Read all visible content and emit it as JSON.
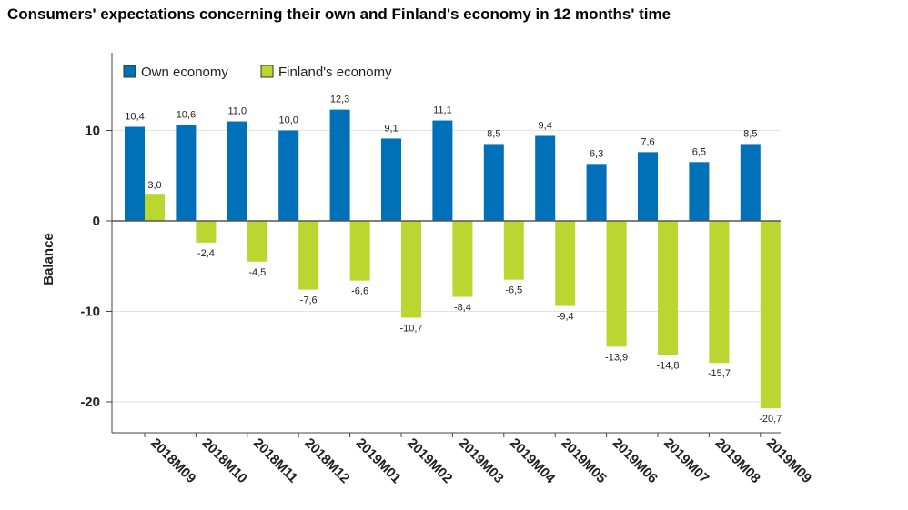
{
  "chart_data": {
    "type": "bar",
    "title": "Consumers' expectations concerning their own and Finland's economy in 12 months' time",
    "ylabel": "Balance",
    "xlabel": "",
    "ylim": [
      -23,
      18
    ],
    "yticks": [
      10,
      0,
      -10,
      -20
    ],
    "categories": [
      "2018M09",
      "2018M10",
      "2018M11",
      "2018M12",
      "2019M01",
      "2019M02",
      "2019M03",
      "2019M04",
      "2019M05",
      "2019M06",
      "2019M07",
      "2019M08",
      "2019M09"
    ],
    "series": [
      {
        "name": "Own economy",
        "color": "#0070b8",
        "values": [
          10.4,
          10.6,
          11.0,
          10.0,
          12.3,
          9.1,
          11.1,
          8.5,
          9.4,
          6.3,
          7.6,
          6.5,
          8.5
        ],
        "labels": [
          "10,4",
          "10,6",
          "11,0",
          "10,0",
          "12,3",
          "9,1",
          "11,1",
          "8,5",
          "9,4",
          "6,3",
          "7,6",
          "6,5",
          "8,5"
        ]
      },
      {
        "name": "Finland's economy",
        "color": "#bcd631",
        "values": [
          3.0,
          -2.4,
          -4.5,
          -7.6,
          -6.6,
          -10.7,
          -8.4,
          -6.5,
          -9.4,
          -13.9,
          -14.8,
          -15.7,
          -20.7
        ],
        "labels": [
          "3,0",
          "-2,4",
          "-4,5",
          "-7,6",
          "-6,6",
          "-10,7",
          "-8,4",
          "-6,5",
          "-9,4",
          "-13,9",
          "-14,8",
          "-15,7",
          "-20,7"
        ]
      }
    ],
    "legend": "top-left",
    "grid": true
  }
}
